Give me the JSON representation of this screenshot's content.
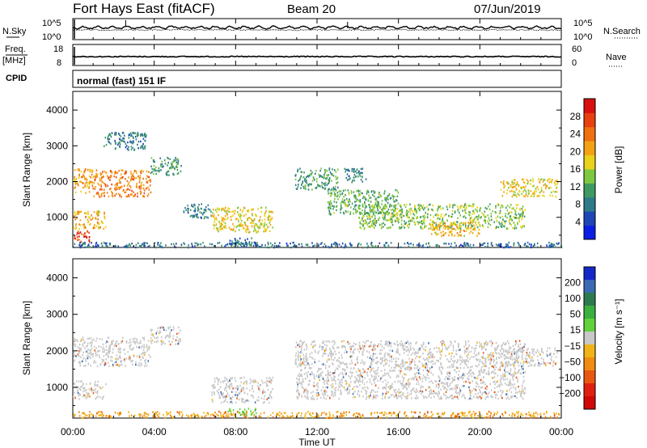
{
  "header": {
    "title": "Fort Hays East (fitACF)",
    "beam": "Beam 20",
    "date": "07/Jun/2019"
  },
  "strips": {
    "nsky_label": "N.Sky",
    "nsearch_label": "N.Search",
    "noise_ticks_left": [
      "10^5",
      "10^0"
    ],
    "noise_ticks_right": [
      "10^5",
      "10^0"
    ],
    "freq_label_1": "Freq.",
    "freq_label_2": "[MHz]",
    "freq_ticks": [
      "18",
      "8"
    ],
    "nave_label": "Nave",
    "nave_ticks": [
      "60",
      "0"
    ],
    "cpid_label": "CPID",
    "cpid_text": "normal (fast) 151 IF"
  },
  "chart_data": [
    {
      "type": "heatmap",
      "name": "power",
      "ylabel": "Slant Range [km]",
      "yticks": [
        "1000",
        "2000",
        "3000",
        "4000"
      ],
      "ylim": [
        180,
        4500
      ],
      "xlim": [
        0,
        24
      ],
      "colorbar_label": "Power [dB]",
      "colorbar_ticks": [
        "4",
        "8",
        "12",
        "16",
        "20",
        "24",
        "28"
      ],
      "colorbar_colors": [
        "#0a1ee6",
        "#1e46b4",
        "#2e7a8a",
        "#3f9a62",
        "#7cc840",
        "#e8d21a",
        "#f4a214",
        "#f07010",
        "#e84010",
        "#d81010"
      ],
      "scatter_regions": [
        {
          "t0": 0.0,
          "t1": 1.0,
          "r0": 1700,
          "r1": 2400,
          "level": 22
        },
        {
          "t0": 1.0,
          "t1": 3.8,
          "r0": 1600,
          "r1": 2350,
          "level": 24
        },
        {
          "t0": 3.8,
          "t1": 5.3,
          "r0": 2200,
          "r1": 2700,
          "level": 10
        },
        {
          "t0": 0.0,
          "t1": 1.6,
          "r0": 700,
          "r1": 1200,
          "level": 20
        },
        {
          "t0": 0.0,
          "t1": 0.8,
          "r0": 300,
          "r1": 650,
          "level": 28
        },
        {
          "t0": 1.5,
          "t1": 3.6,
          "r0": 2900,
          "r1": 3400,
          "level": 8
        },
        {
          "t0": 5.4,
          "t1": 6.8,
          "r0": 1000,
          "r1": 1400,
          "level": 8
        },
        {
          "t0": 6.8,
          "t1": 9.8,
          "r0": 600,
          "r1": 1300,
          "level": 18
        },
        {
          "t0": 7.5,
          "t1": 9.0,
          "r0": 250,
          "r1": 450,
          "level": 6
        },
        {
          "t0": 10.9,
          "t1": 13.0,
          "r0": 1800,
          "r1": 2400,
          "level": 10
        },
        {
          "t0": 12.5,
          "t1": 16.0,
          "r0": 1100,
          "r1": 1800,
          "level": 12
        },
        {
          "t0": 14.0,
          "t1": 22.2,
          "r0": 700,
          "r1": 1400,
          "level": 14
        },
        {
          "t0": 17.5,
          "t1": 20.0,
          "r0": 500,
          "r1": 900,
          "level": 20
        },
        {
          "t0": 13.3,
          "t1": 14.4,
          "r0": 2000,
          "r1": 2400,
          "level": 8
        },
        {
          "t0": 21.0,
          "t1": 23.8,
          "r0": 1600,
          "r1": 2100,
          "level": 18
        },
        {
          "t0": 0.0,
          "t1": 24.0,
          "r0": 180,
          "r1": 320,
          "level": 6
        }
      ]
    },
    {
      "type": "heatmap",
      "name": "velocity",
      "ylabel": "Slant Range [km]",
      "yticks": [
        "1000",
        "2000",
        "3000",
        "4000"
      ],
      "ylim": [
        180,
        4500
      ],
      "xlim": [
        0,
        24
      ],
      "xlabel": "Time UT",
      "xticks": [
        "00:00",
        "04:00",
        "08:00",
        "12:00",
        "16:00",
        "20:00",
        "00:00"
      ],
      "colorbar_label": "Velocity [m s⁻¹]",
      "colorbar_ticks": [
        "200",
        "100",
        "50",
        "15",
        "−15",
        "−50",
        "−100",
        "−200"
      ],
      "colorbar_colors": [
        "#1428c8",
        "#3a6ab4",
        "#2e7a50",
        "#3ab040",
        "#62d23c",
        "#c8c8c8",
        "#f0b418",
        "#f08c10",
        "#e85810",
        "#e02010",
        "#d00808"
      ],
      "scatter_regions": [
        {
          "t0": 0.0,
          "t1": 3.8,
          "r0": 1600,
          "r1": 2400,
          "vel": 0
        },
        {
          "t0": 0.0,
          "t1": 1.6,
          "r0": 700,
          "r1": 1200,
          "vel": 0
        },
        {
          "t0": 3.8,
          "t1": 5.3,
          "r0": 2200,
          "r1": 2700,
          "vel": 0
        },
        {
          "t0": 6.8,
          "t1": 9.8,
          "r0": 600,
          "r1": 1300,
          "vel": 0
        },
        {
          "t0": 7.5,
          "t1": 9.0,
          "r0": 250,
          "r1": 450,
          "vel": 40
        },
        {
          "t0": 10.9,
          "t1": 22.2,
          "r0": 700,
          "r1": 2300,
          "vel": 0
        },
        {
          "t0": 21.0,
          "t1": 23.8,
          "r0": 1600,
          "r1": 2100,
          "vel": 0
        },
        {
          "t0": 0.0,
          "t1": 24.0,
          "r0": 180,
          "r1": 360,
          "vel": -60
        }
      ]
    }
  ]
}
